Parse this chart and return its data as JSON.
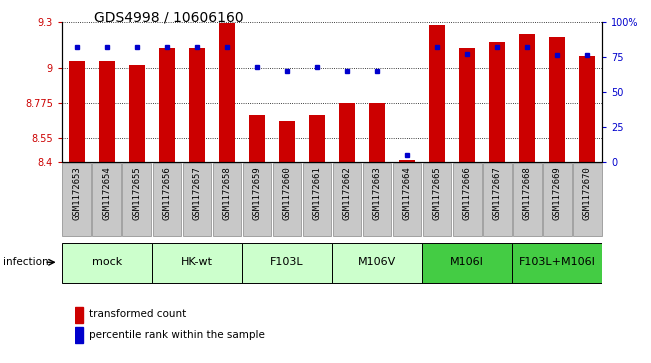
{
  "title": "GDS4998 / 10606160",
  "samples": [
    "GSM1172653",
    "GSM1172654",
    "GSM1172655",
    "GSM1172656",
    "GSM1172657",
    "GSM1172658",
    "GSM1172659",
    "GSM1172660",
    "GSM1172661",
    "GSM1172662",
    "GSM1172663",
    "GSM1172664",
    "GSM1172665",
    "GSM1172666",
    "GSM1172667",
    "GSM1172668",
    "GSM1172669",
    "GSM1172670"
  ],
  "bar_values": [
    9.05,
    9.05,
    9.02,
    9.13,
    9.13,
    9.29,
    8.7,
    8.66,
    8.7,
    8.775,
    8.775,
    8.41,
    9.28,
    9.13,
    9.17,
    9.22,
    9.2,
    9.08
  ],
  "percentile_values": [
    82,
    82,
    82,
    82,
    82,
    82,
    68,
    65,
    68,
    65,
    65,
    5,
    82,
    77,
    82,
    82,
    76,
    76
  ],
  "ymin": 8.4,
  "ymax": 9.3,
  "yticks": [
    8.4,
    8.55,
    8.775,
    9.0,
    9.3
  ],
  "ytick_labels": [
    "8.4",
    "8.55",
    "8.775",
    "9",
    "9.3"
  ],
  "right_yticks": [
    0,
    25,
    50,
    75,
    100
  ],
  "right_ytick_labels": [
    "0",
    "25",
    "50",
    "75",
    "100%"
  ],
  "bar_color": "#cc0000",
  "percentile_color": "#0000cc",
  "bar_width": 0.55,
  "group_spans": [
    {
      "label": "mock",
      "start": 0,
      "end": 2,
      "color": "#ccffcc"
    },
    {
      "label": "HK-wt",
      "start": 3,
      "end": 5,
      "color": "#ccffcc"
    },
    {
      "label": "F103L",
      "start": 6,
      "end": 8,
      "color": "#ccffcc"
    },
    {
      "label": "M106V",
      "start": 9,
      "end": 11,
      "color": "#ccffcc"
    },
    {
      "label": "M106I",
      "start": 12,
      "end": 14,
      "color": "#44cc44"
    },
    {
      "label": "F103L+M106I",
      "start": 15,
      "end": 17,
      "color": "#44cc44"
    }
  ],
  "infection_label": "infection",
  "legend_bar_label": "transformed count",
  "legend_dot_label": "percentile rank within the sample",
  "left_axis_color": "#cc0000",
  "right_axis_color": "#0000cc",
  "title_fontsize": 10,
  "tick_fontsize": 7,
  "sample_fontsize": 6.5,
  "group_label_fontsize": 8,
  "legend_fontsize": 7.5,
  "sample_box_color": "#c8c8c8",
  "sample_box_edge": "#888888"
}
